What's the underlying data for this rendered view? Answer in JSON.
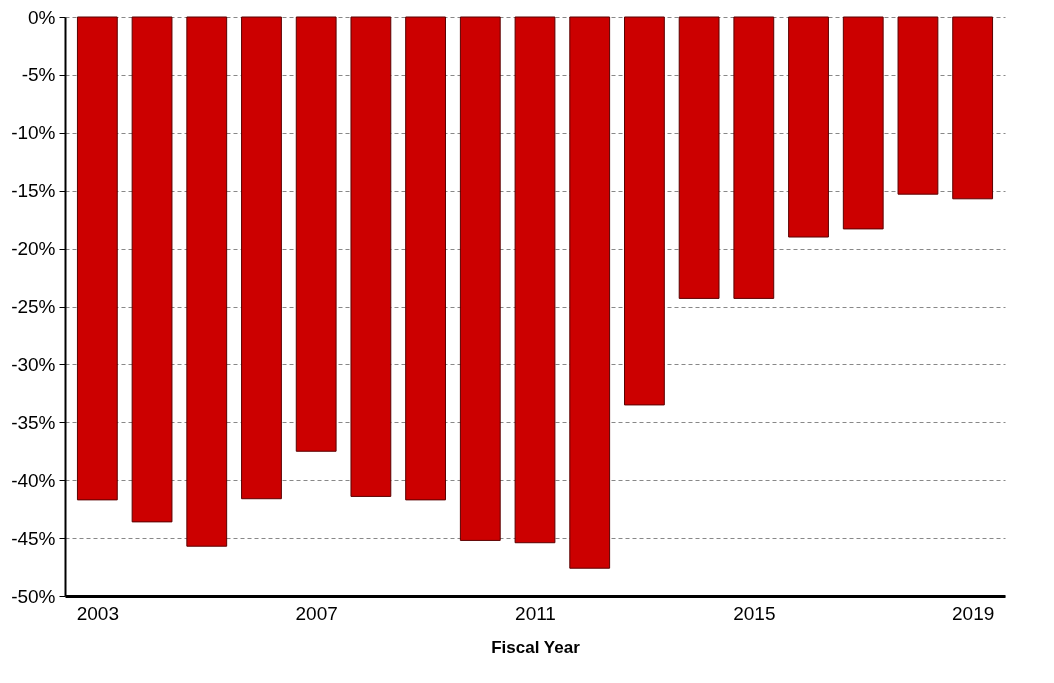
{
  "chart_data": {
    "type": "bar",
    "xlabel": "Fiscal Year",
    "x": [
      2003,
      2004,
      2005,
      2006,
      2007,
      2008,
      2009,
      2010,
      2011,
      2012,
      2013,
      2014,
      2015,
      2016,
      2017,
      2018,
      2019
    ],
    "values": [
      -41.7,
      -43.6,
      -45.7,
      -41.6,
      -37.5,
      -41.4,
      -41.7,
      -45.2,
      -45.4,
      -47.6,
      -33.5,
      -24.3,
      -24.3,
      -19.0,
      -18.3,
      -15.3,
      -15.7
    ],
    "color": "#cc0000",
    "xlim": [
      2002.5,
      2019.5
    ],
    "xticks": [
      2003,
      2007,
      2011,
      2015,
      2019
    ],
    "ylim": [
      -50,
      0
    ],
    "yticks": [
      {
        "value": 0,
        "label": "0%"
      },
      {
        "value": -5,
        "label": "-5%"
      },
      {
        "value": -10,
        "label": "-10%"
      },
      {
        "value": -15,
        "label": "-15%"
      },
      {
        "value": -20,
        "label": "-20%"
      },
      {
        "value": -25,
        "label": "-25%"
      },
      {
        "value": -30,
        "label": "-30%"
      },
      {
        "value": -35,
        "label": "-35%"
      },
      {
        "value": -40,
        "label": "-40%"
      },
      {
        "value": -45,
        "label": "-45%"
      },
      {
        "value": -50,
        "label": "-50%"
      }
    ],
    "grid": "y"
  }
}
